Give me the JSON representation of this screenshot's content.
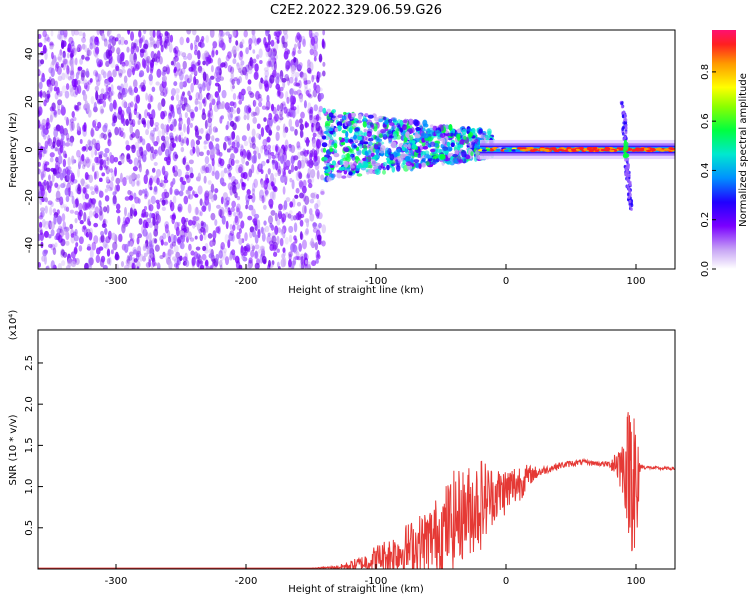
{
  "figure": {
    "title": "C2E2.2022.329.06.59.G26"
  },
  "chart_data": [
    {
      "type": "heatmap",
      "xlabel": "Height of straight line (km)",
      "ylabel": "Frequency (Hz)",
      "xlim": [
        -360,
        130
      ],
      "ylim": [
        -50,
        50
      ],
      "xticks": [
        -300,
        -200,
        -100,
        0,
        100
      ],
      "yticks": [
        -40,
        -20,
        0,
        20,
        40
      ],
      "colorbar": {
        "label": "Normalized spectral amplitude",
        "range": [
          0.0,
          0.97
        ],
        "ticks": [
          0.0,
          0.2,
          0.4,
          0.6,
          0.8
        ],
        "tick_labels": [
          "0.0",
          "0.2",
          "0.4",
          "0.6",
          "0.8"
        ],
        "colormap": "rainbow"
      },
      "grid": false
    },
    {
      "type": "line",
      "xlabel": "Height of straight line (km)",
      "ylabel": "SNR (10 * v/v)",
      "y_multiplier": "(x10⁴)",
      "xlim": [
        -360,
        130
      ],
      "ylim": [
        0,
        2.9
      ],
      "xticks": [
        -300,
        -200,
        -100,
        0,
        100
      ],
      "yticks": [
        0.5,
        1.0,
        1.5,
        2.0,
        2.5
      ],
      "ytick_labels": [
        "0.5",
        "1.0",
        "1.5",
        "2.0",
        "2.5"
      ],
      "series": [
        {
          "color": "#e53935",
          "x": [
            -360,
            -300,
            -250,
            -200,
            -150,
            -130,
            -120,
            -110,
            -100,
            -90,
            -80,
            -70,
            -60,
            -50,
            -40,
            -30,
            -20,
            -10,
            0,
            10,
            20,
            30,
            40,
            50,
            60,
            70,
            80,
            85,
            90,
            95,
            98,
            100,
            103,
            105,
            110,
            120,
            130
          ],
          "y": [
            0.01,
            0.01,
            0.01,
            0.01,
            0.01,
            0.02,
            0.04,
            0.07,
            0.12,
            0.17,
            0.22,
            0.28,
            0.35,
            0.45,
            0.6,
            0.7,
            0.8,
            0.9,
            0.95,
            1.05,
            1.15,
            1.2,
            1.25,
            1.28,
            1.3,
            1.28,
            1.27,
            1.3,
            1.25,
            1.2,
            1.5,
            0.5,
            1.25,
            1.24,
            1.23,
            1.22,
            1.22
          ],
          "noise": [
            0,
            0,
            0,
            0,
            0,
            0.02,
            0.06,
            0.1,
            0.18,
            0.22,
            0.3,
            0.35,
            0.4,
            0.5,
            0.6,
            0.55,
            0.6,
            0.35,
            0.3,
            0.25,
            0.1,
            0.05,
            0.04,
            0.04,
            0.03,
            0.03,
            0.04,
            0.25,
            0.35,
            0.9,
            1.4,
            1.3,
            0.08,
            0.03,
            0.02,
            0.02,
            0.02
          ]
        }
      ]
    }
  ]
}
